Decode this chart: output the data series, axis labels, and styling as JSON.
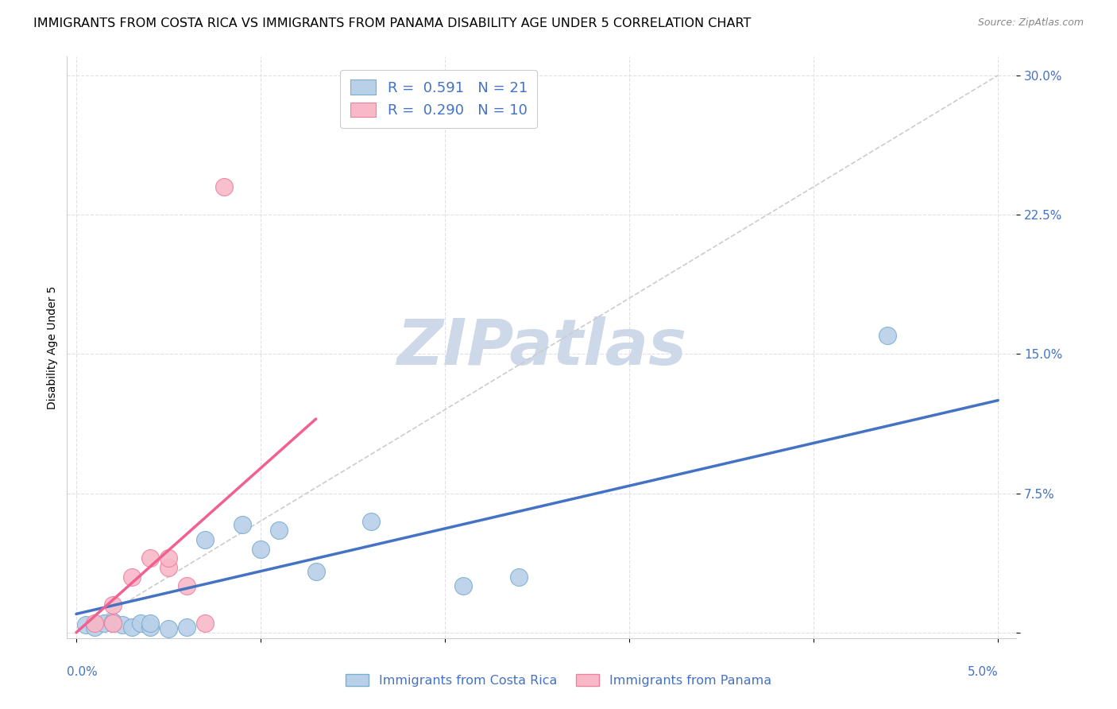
{
  "title": "IMMIGRANTS FROM COSTA RICA VS IMMIGRANTS FROM PANAMA DISABILITY AGE UNDER 5 CORRELATION CHART",
  "source": "Source: ZipAtlas.com",
  "ylabel": "Disability Age Under 5",
  "y_ticks": [
    0.0,
    0.075,
    0.15,
    0.225,
    0.3
  ],
  "y_tick_labels": [
    "",
    "7.5%",
    "15.0%",
    "22.5%",
    "30.0%"
  ],
  "x_ticks": [
    0.0,
    0.01,
    0.02,
    0.03,
    0.04,
    0.05
  ],
  "xlim": [
    -0.0005,
    0.051
  ],
  "ylim": [
    -0.003,
    0.31
  ],
  "costa_rica_R": 0.591,
  "costa_rica_N": 21,
  "panama_R": 0.29,
  "panama_N": 10,
  "costa_rica_color": "#b8d0e8",
  "panama_color": "#f8b8c8",
  "costa_rica_edge_color": "#7aaed0",
  "panama_edge_color": "#f080a0",
  "costa_rica_line_color": "#4472c4",
  "panama_line_color": "#f06090",
  "ref_line_color": "#cccccc",
  "watermark_color": "#cdd8e8",
  "grid_color": "#e0e0e8",
  "tick_color": "#4472c4",
  "title_fontsize": 11.5,
  "axis_label_fontsize": 10,
  "tick_fontsize": 11,
  "costa_rica_x": [
    0.0005,
    0.001,
    0.0015,
    0.002,
    0.002,
    0.0025,
    0.003,
    0.0035,
    0.004,
    0.004,
    0.005,
    0.006,
    0.007,
    0.009,
    0.01,
    0.011,
    0.013,
    0.016,
    0.021,
    0.024,
    0.044
  ],
  "costa_rica_y": [
    0.004,
    0.003,
    0.005,
    0.005,
    0.006,
    0.004,
    0.003,
    0.005,
    0.003,
    0.005,
    0.002,
    0.003,
    0.05,
    0.058,
    0.045,
    0.055,
    0.033,
    0.06,
    0.025,
    0.03,
    0.16
  ],
  "panama_x": [
    0.001,
    0.002,
    0.002,
    0.003,
    0.004,
    0.005,
    0.005,
    0.006,
    0.007,
    0.008
  ],
  "panama_y": [
    0.005,
    0.005,
    0.015,
    0.03,
    0.04,
    0.035,
    0.04,
    0.025,
    0.005,
    0.24
  ],
  "cr_line_x0": 0.0,
  "cr_line_x1": 0.05,
  "cr_line_y0": 0.01,
  "cr_line_y1": 0.125,
  "pa_line_x0": 0.0,
  "pa_line_x1": 0.013,
  "pa_line_y0": 0.0,
  "pa_line_y1": 0.115
}
